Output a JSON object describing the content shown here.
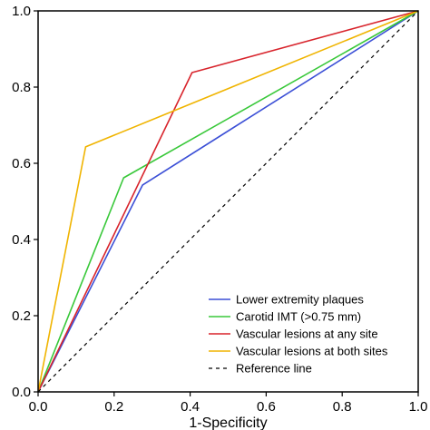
{
  "chart_data": {
    "type": "line",
    "title": "",
    "xlabel": "1-Specificity",
    "ylabel": "",
    "xlim": [
      0.0,
      1.0
    ],
    "ylim": [
      0.0,
      1.0
    ],
    "xticks": [
      "0.0",
      "0.2",
      "0.4",
      "0.6",
      "0.8",
      "1.0"
    ],
    "yticks": [
      "0.0",
      "0.2",
      "0.4",
      "0.6",
      "0.8",
      "1.0"
    ],
    "grid": false,
    "legend": "bottom-right",
    "series": [
      {
        "name": "Lower extremity plaques",
        "color": "#3b4fd6",
        "dash": "solid",
        "x": [
          0.0,
          0.275,
          1.0
        ],
        "y": [
          0.0,
          0.543,
          1.0
        ]
      },
      {
        "name": "Carotid IMT (>0.75 mm)",
        "color": "#39c83a",
        "dash": "solid",
        "x": [
          0.0,
          0.225,
          1.0
        ],
        "y": [
          0.0,
          0.562,
          1.0
        ]
      },
      {
        "name": "Vascular lesions at any site",
        "color": "#d8242c",
        "dash": "solid",
        "x": [
          0.0,
          0.405,
          1.0
        ],
        "y": [
          0.0,
          0.838,
          1.0
        ]
      },
      {
        "name": "Vascular lesions at both sites",
        "color": "#f0b400",
        "dash": "solid",
        "x": [
          0.0,
          0.125,
          1.0
        ],
        "y": [
          0.0,
          0.643,
          1.0
        ]
      },
      {
        "name": "Reference line",
        "color": "#000000",
        "dash": "dashed",
        "x": [
          0.0,
          1.0
        ],
        "y": [
          0.0,
          1.0
        ]
      }
    ]
  }
}
